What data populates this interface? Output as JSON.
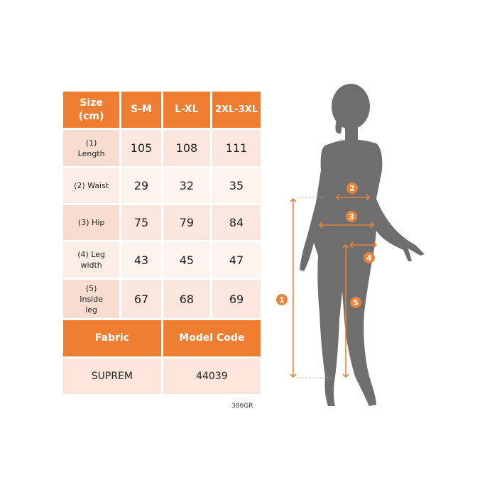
{
  "table": {
    "header": [
      "Size (cm)",
      "S-M",
      "L-XL",
      "2XL-3XL"
    ],
    "header_lines": [
      [
        "Size",
        "(cm)"
      ],
      [
        "S-M"
      ],
      [
        "L-XL"
      ],
      [
        "2XL-",
        "3XL"
      ]
    ],
    "rows": [
      {
        "label_lines": [
          "(1)",
          "Length"
        ],
        "values": [
          "105",
          "108",
          "111"
        ]
      },
      {
        "label_lines": [
          "(2) Waist"
        ],
        "values": [
          "29",
          "32",
          "35"
        ]
      },
      {
        "label_lines": [
          "(3) Hip"
        ],
        "values": [
          "75",
          "79",
          "84"
        ]
      },
      {
        "label_lines": [
          "(4) Leg",
          "width"
        ],
        "values": [
          "43",
          "45",
          "47"
        ]
      },
      {
        "label_lines": [
          "(5)",
          "Inside",
          "leg"
        ],
        "values": [
          "67",
          "68",
          "69"
        ]
      }
    ],
    "fabric_label": "Fabric",
    "model_code_label": "Model Code",
    "fabric_value": "SUPREM",
    "model_code_value": "44039"
  },
  "product_code": "386GR",
  "figure": {
    "markers": [
      "1",
      "2",
      "3",
      "4",
      "5"
    ]
  },
  "colors": {
    "accent": "#ED7D31",
    "silhouette": "#6E6E6E"
  }
}
